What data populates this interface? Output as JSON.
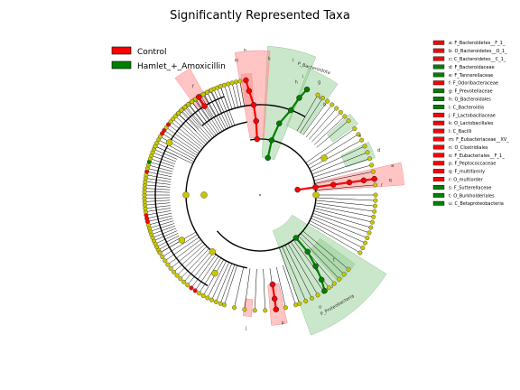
{
  "chart_data": {
    "type": "cladogram",
    "title": "Significantly Represented Taxa",
    "colors": {
      "control": "#ff0000",
      "hamlet": "#008000",
      "neutral": "#c8c800",
      "control_shade": "#ff8a8a",
      "hamlet_shade": "#8cc98c"
    },
    "legend": [
      {
        "name": "Control",
        "color": "#ff0000"
      },
      {
        "name": "Hamlet_+_Amoxicillin",
        "color": "#008000"
      }
    ],
    "key_entries": [
      {
        "label": "a: F_Bacteroidetes__F_1_",
        "class": "control"
      },
      {
        "label": "b: O_Bacteroidetes__O_1_",
        "class": "control"
      },
      {
        "label": "c: C_Bacteroidetes__C_1_",
        "class": "control"
      },
      {
        "label": "d: F_Bacteroidaceae",
        "class": "hamlet"
      },
      {
        "label": "e: F_Tannerellaceae",
        "class": "hamlet"
      },
      {
        "label": "f: F_Odoribacteraceae",
        "class": "control"
      },
      {
        "label": "g: F_Prevotellaceae",
        "class": "hamlet"
      },
      {
        "label": "h: O_Bacteroidales",
        "class": "hamlet"
      },
      {
        "label": "i: C_Bacteroidia",
        "class": "hamlet"
      },
      {
        "label": "j: F_Lactobacillaceae",
        "class": "control"
      },
      {
        "label": "k: O_Lactobacillales",
        "class": "control"
      },
      {
        "label": "l: C_Bacilli",
        "class": "control"
      },
      {
        "label": "m: F_Eubacteriaceae__XV_",
        "class": "control"
      },
      {
        "label": "n: O_Clostridiales",
        "class": "control"
      },
      {
        "label": "o: F_Eubacteriales__F_1_",
        "class": "control"
      },
      {
        "label": "p: F_Peptococcaceae",
        "class": "control"
      },
      {
        "label": "q: F_multifamily",
        "class": "control"
      },
      {
        "label": "r: O_multiorder",
        "class": "control"
      },
      {
        "label": "s: F_Sutterellaceae",
        "class": "hamlet"
      },
      {
        "label": "t: O_Burkholderiales",
        "class": "hamlet"
      },
      {
        "label": "u: C_Betaproteobacteria",
        "class": "hamlet"
      }
    ],
    "clade_labels": [
      {
        "label": "P_Bacteroidota",
        "class": "hamlet"
      },
      {
        "label": "P_Proteobacteria",
        "class": "hamlet"
      }
    ],
    "sector_letters": [
      "n",
      "k",
      "l",
      "m",
      "g",
      "i",
      "h",
      "c",
      "b",
      "a",
      "d",
      "e",
      "f",
      "q",
      "r",
      "j",
      "p",
      "o",
      "s",
      "t"
    ]
  }
}
